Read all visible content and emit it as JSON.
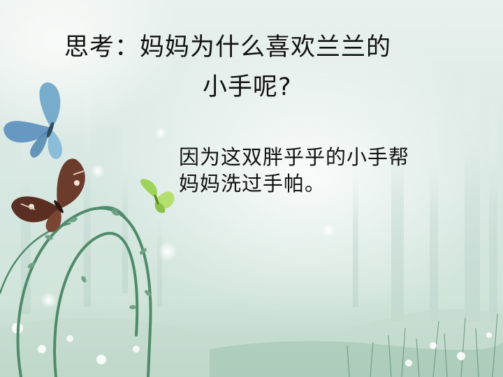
{
  "slide": {
    "question_line1": "思考：妈妈为什么喜欢兰兰的",
    "question_line2": "小手呢?",
    "answer_line1": "因为这双胖乎乎的小手帮",
    "answer_line2": "妈妈洗过手帕。"
  },
  "colors": {
    "text": "#111111",
    "background": "#dbe9e4",
    "blue_butterfly": "#6aa4c8",
    "brown_butterfly": "#6b3b2c",
    "green_butterfly": "#9fd45a",
    "vine": "#4f8a6a"
  },
  "decor": [
    "blue-butterfly",
    "brown-butterfly",
    "green-butterfly",
    "vine-arch",
    "forest-trees",
    "flowers"
  ]
}
